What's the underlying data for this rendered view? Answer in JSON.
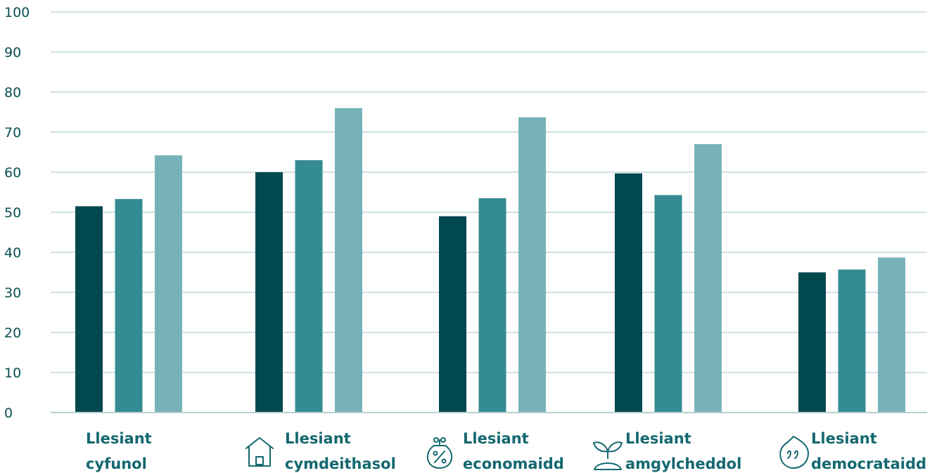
{
  "chart_data": {
    "type": "bar",
    "title": "",
    "xlabel": "",
    "ylabel": "",
    "ylim": [
      0,
      100
    ],
    "yticks": [
      0,
      10,
      20,
      30,
      40,
      50,
      60,
      70,
      80,
      90,
      100
    ],
    "grid": true,
    "legend": "none",
    "categories": [
      {
        "line1": "Llesiant",
        "line2": "cyfunol",
        "icon": "none"
      },
      {
        "line1": "Llesiant",
        "line2": "cymdeithasol",
        "icon": "house-icon"
      },
      {
        "line1": "Llesiant",
        "line2": "economaidd",
        "icon": "money-bag-percent-icon"
      },
      {
        "line1": "Llesiant",
        "line2": "amgylcheddol",
        "icon": "seedling-icon"
      },
      {
        "line1": "Llesiant",
        "line2": "democrataidd",
        "icon": "speech-drop-quote-icon"
      }
    ],
    "series": [
      {
        "color": "#02484f",
        "values": [
          51.5,
          60,
          49,
          59.7,
          35
        ]
      },
      {
        "color": "#358b92",
        "values": [
          53.3,
          63,
          53.5,
          54.3,
          35.7
        ]
      },
      {
        "color": "#77b2b9",
        "values": [
          64.2,
          76,
          73.7,
          67,
          38.7
        ]
      }
    ]
  }
}
